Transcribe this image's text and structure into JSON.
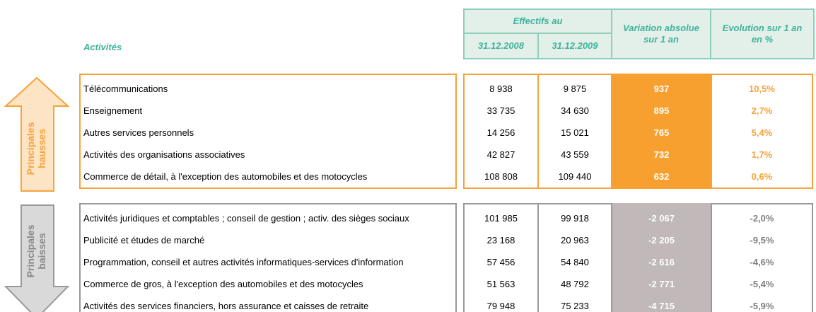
{
  "header": {
    "activities": "Activités",
    "headcount": "Effectifs au",
    "date1": "31.12.2008",
    "date2": "31.12.2009",
    "variation": "Variation absolue sur 1 an",
    "evolution": "Evolution sur 1 an en %"
  },
  "groups": [
    {
      "label": [
        "Principales",
        "hausses"
      ],
      "rows": [
        [
          "Télécommunications",
          "8 938",
          "9 875",
          "937",
          "10,5%"
        ],
        [
          "Enseignement",
          "33 735",
          "34 630",
          "895",
          "2,7%"
        ],
        [
          "Autres services personnels",
          "14 256",
          "15 021",
          "765",
          "5,4%"
        ],
        [
          "Activités des organisations associatives",
          "42 827",
          "43 559",
          "732",
          "1,7%"
        ],
        [
          "Commerce de détail, à l'exception des automobiles et des motocycles",
          "108 808",
          "109 440",
          "632",
          "0,6%"
        ]
      ]
    },
    {
      "label": [
        "Principales",
        "baisses"
      ],
      "rows": [
        [
          "Activités juridiques et comptables ; conseil de gestion ; activ. des sièges sociaux",
          "101 985",
          "99 918",
          "-2 067",
          "-2,0%"
        ],
        [
          "Publicité et études de marché",
          "23 168",
          "20 963",
          "-2 205",
          "-9,5%"
        ],
        [
          "Programmation, conseil et autres activités informatiques-services d'information",
          "57 456",
          "54 840",
          "-2 616",
          "-4,6%"
        ],
        [
          "Commerce de gros, à l'exception des automobiles et des motocycles",
          "51 563",
          "48 792",
          "-2 771",
          "-5,4%"
        ],
        [
          "Activités des services financiers, hors assurance et caisses de retraite",
          "79 948",
          "75 233",
          "-4 715",
          "-5,9%"
        ]
      ]
    }
  ]
}
